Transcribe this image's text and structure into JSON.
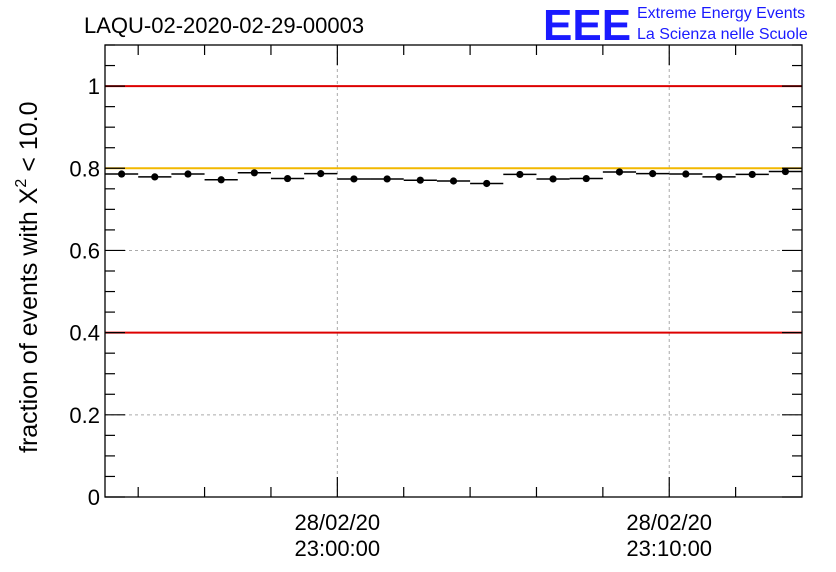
{
  "chart_data": {
    "type": "scatter",
    "title": "LAQU-02-2020-02-29-00003",
    "ylabel_main": "fraction of events with ",
    "ylabel_symbol": "X",
    "ylabel_power": "2",
    "ylabel_tail": " < 10.0",
    "ylim": [
      0,
      1.1
    ],
    "yticks": [
      "0",
      "0.2",
      "0.4",
      "0.6",
      "0.8",
      "1"
    ],
    "ytick_values": [
      0,
      0.2,
      0.4,
      0.6,
      0.8,
      1.0
    ],
    "x_tick_labels": [
      {
        "date": "28/02/20",
        "time": "23:00:00",
        "x_minutes": 7.0
      },
      {
        "date": "28/02/20",
        "time": "23:10:00",
        "x_minutes": 17.0
      }
    ],
    "x_range_minutes": [
      0,
      21
    ],
    "bin_width_minutes": 1,
    "values": [
      0.786,
      0.779,
      0.786,
      0.772,
      0.789,
      0.775,
      0.787,
      0.774,
      0.774,
      0.771,
      0.769,
      0.763,
      0.785,
      0.774,
      0.775,
      0.791,
      0.787,
      0.786,
      0.779,
      0.785,
      0.792
    ],
    "reference_lines": [
      {
        "value": 1.0,
        "color": "#dd0000"
      },
      {
        "value": 0.8,
        "color": "#f2b800"
      },
      {
        "value": 0.4,
        "color": "#dd0000"
      }
    ],
    "grid": true
  },
  "logo": {
    "mark": "EEE",
    "line1": "Extreme Energy Events",
    "line2": "La Scienza nelle Scuole",
    "color": "#1a1aff"
  }
}
